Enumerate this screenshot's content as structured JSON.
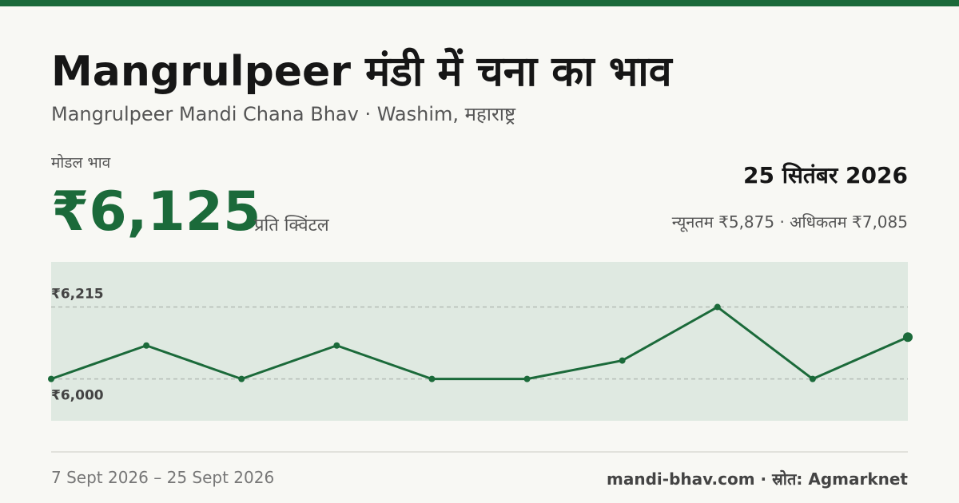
{
  "header": {
    "title": "Mangrulpeer मंडी में चना का भाव",
    "subtitle": "Mangrulpeer Mandi Chana Bhav · Washim, महाराष्ट्र"
  },
  "price": {
    "label": "मोडल भाव",
    "value": "₹6,125",
    "unit": "प्रति क्विंटल",
    "date": "25 सितंबर 2026",
    "range": "न्यूनतम ₹5,875 · अधिकतम ₹7,085"
  },
  "footer": {
    "period": "7 Sept 2026 – 25 Sept 2026",
    "source": "mandi-bhav.com · स्रोत: Agmarknet"
  },
  "chart_data": {
    "type": "line",
    "values": [
      6000,
      6100,
      6000,
      6100,
      6000,
      6000,
      6055,
      6215,
      6000,
      6125
    ],
    "color": "#1b6a3a",
    "ylim": [
      5875,
      6350
    ],
    "yticks": [
      {
        "value": 6215,
        "label": "₹6,215"
      },
      {
        "value": 6000,
        "label": "₹6,000"
      }
    ],
    "grid": true
  }
}
